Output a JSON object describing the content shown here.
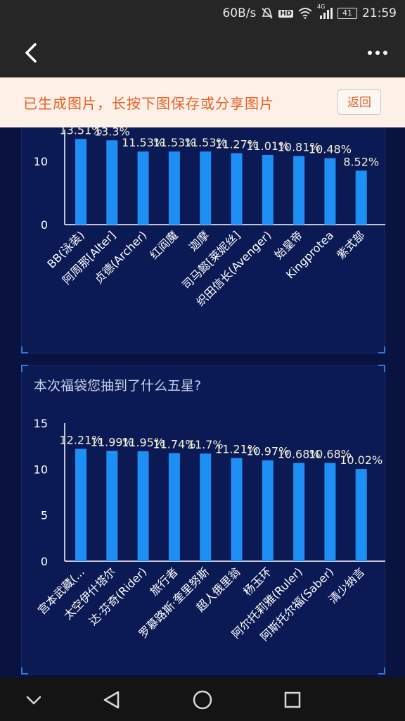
{
  "status_bar": {
    "net_speed": "60B/s",
    "hd_badge": "HD",
    "signal_type": "4G",
    "battery_level": "41",
    "time": "21:59",
    "icons": [
      "mute-icon",
      "wifi-icon",
      "signal-icon",
      "battery-icon"
    ]
  },
  "app_bar": {
    "back_icon": "chevron-left-icon",
    "more_icon": "more-dots-icon"
  },
  "notice": {
    "text": "已生成图片，长按下图保存或分享图片",
    "return_label": "返回"
  },
  "colors": {
    "bar": "#1e90f5",
    "label_text": "#ffffff",
    "notice_text": "#e6622b",
    "panel_bg": "#0b1a54"
  },
  "chart_data": [
    {
      "type": "bar",
      "title": "",
      "categories": [
        "BB(泳装)",
        "阿周那[Alter]",
        "贞德(Archer)",
        "红阎魔",
        "迦摩",
        "司马懿[莱妮丝]",
        "织田信长(Avenger)",
        "始皇帝",
        "Kingprotea",
        "紫式部"
      ],
      "values": [
        13.51,
        13.3,
        11.53,
        11.53,
        11.53,
        11.27,
        11.01,
        10.81,
        10.48,
        8.52
      ],
      "data_labels": [
        "13.51%",
        "13.3%",
        "11.53%",
        "11.53%",
        "11.53%",
        "11.27%",
        "11.01%",
        "10.81%",
        "10.48%",
        "8.52%"
      ],
      "y_ticks": [
        "0",
        "10"
      ],
      "ylim": [
        0,
        15
      ],
      "grid": false
    },
    {
      "type": "bar",
      "title": "本次福袋您抽到了什么五星?",
      "categories": [
        "宫本武藏(...",
        "太空伊什塔尔",
        "达·芬奇(Rider)",
        "旅行者",
        "罗慕路斯·奎里努斯",
        "超人俄里翁",
        "杨玉环",
        "阿尔托莉雅(Ruler)",
        "阿斯托尔福(Saber)",
        "清少纳言"
      ],
      "values": [
        12.21,
        11.99,
        11.95,
        11.74,
        11.7,
        11.21,
        10.97,
        10.68,
        10.68,
        10.02
      ],
      "data_labels": [
        "12.21%",
        "11.99%",
        "11.95%",
        "11.74%",
        "11.7%",
        "11.21%",
        "10.97%",
        "10.68%",
        "10.68%",
        "10.02%"
      ],
      "y_ticks": [
        "0",
        "5",
        "10",
        "15"
      ],
      "ylim": [
        0,
        15
      ],
      "grid": false
    }
  ],
  "nav_bar": {
    "items": [
      "hide-keyboard-icon",
      "back-triangle-icon",
      "home-circle-icon",
      "recents-square-icon"
    ]
  }
}
